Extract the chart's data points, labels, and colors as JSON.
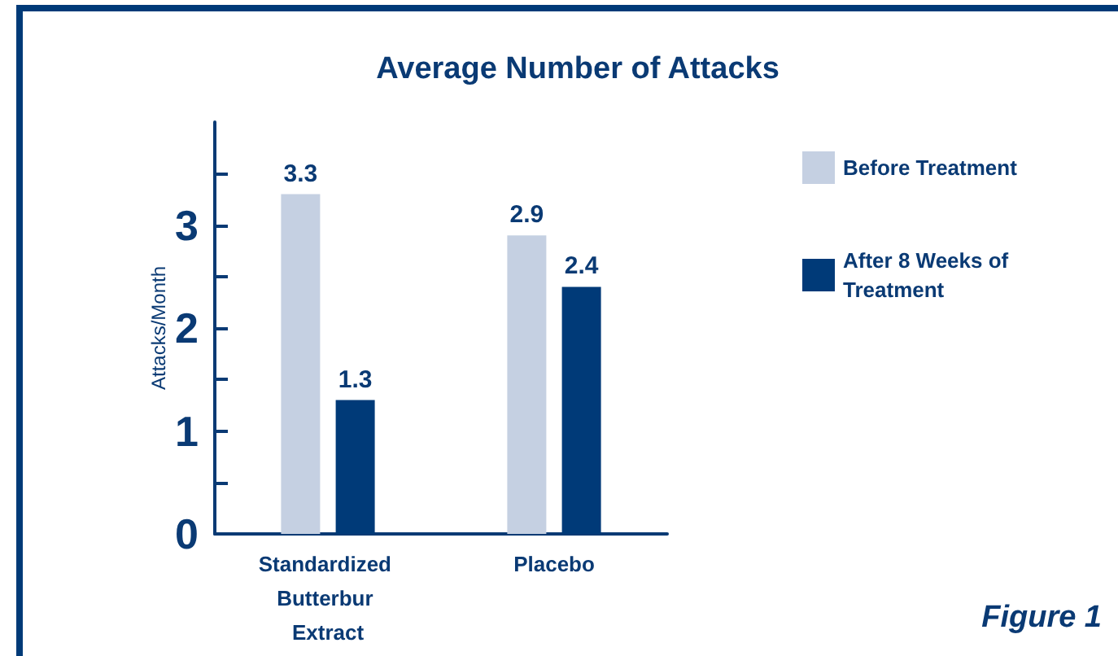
{
  "chart_data": {
    "type": "bar",
    "title": "Average Number of Attacks",
    "ylabel": "Attacks/Month",
    "categories": [
      "Standardized Butterbur Extract",
      "Placebo"
    ],
    "series": [
      {
        "name": "Before Treatment",
        "color": "#c5d0e2",
        "values": [
          3.3,
          2.9
        ]
      },
      {
        "name": "After 8 Weeks of Treatment",
        "color": "#003a78",
        "values": [
          1.3,
          2.4
        ]
      }
    ],
    "ylim": [
      0,
      4
    ],
    "yticks": [
      0,
      {
        "value": 0.5,
        "label": null
      },
      1,
      {
        "value": 1.5,
        "label": null
      },
      2,
      {
        "value": 2.5,
        "label": null
      },
      3,
      {
        "value": 3.5,
        "label": null
      }
    ],
    "grid": false,
    "legend": "right",
    "data_labels": true,
    "annotations": [
      "Figure 1"
    ]
  }
}
